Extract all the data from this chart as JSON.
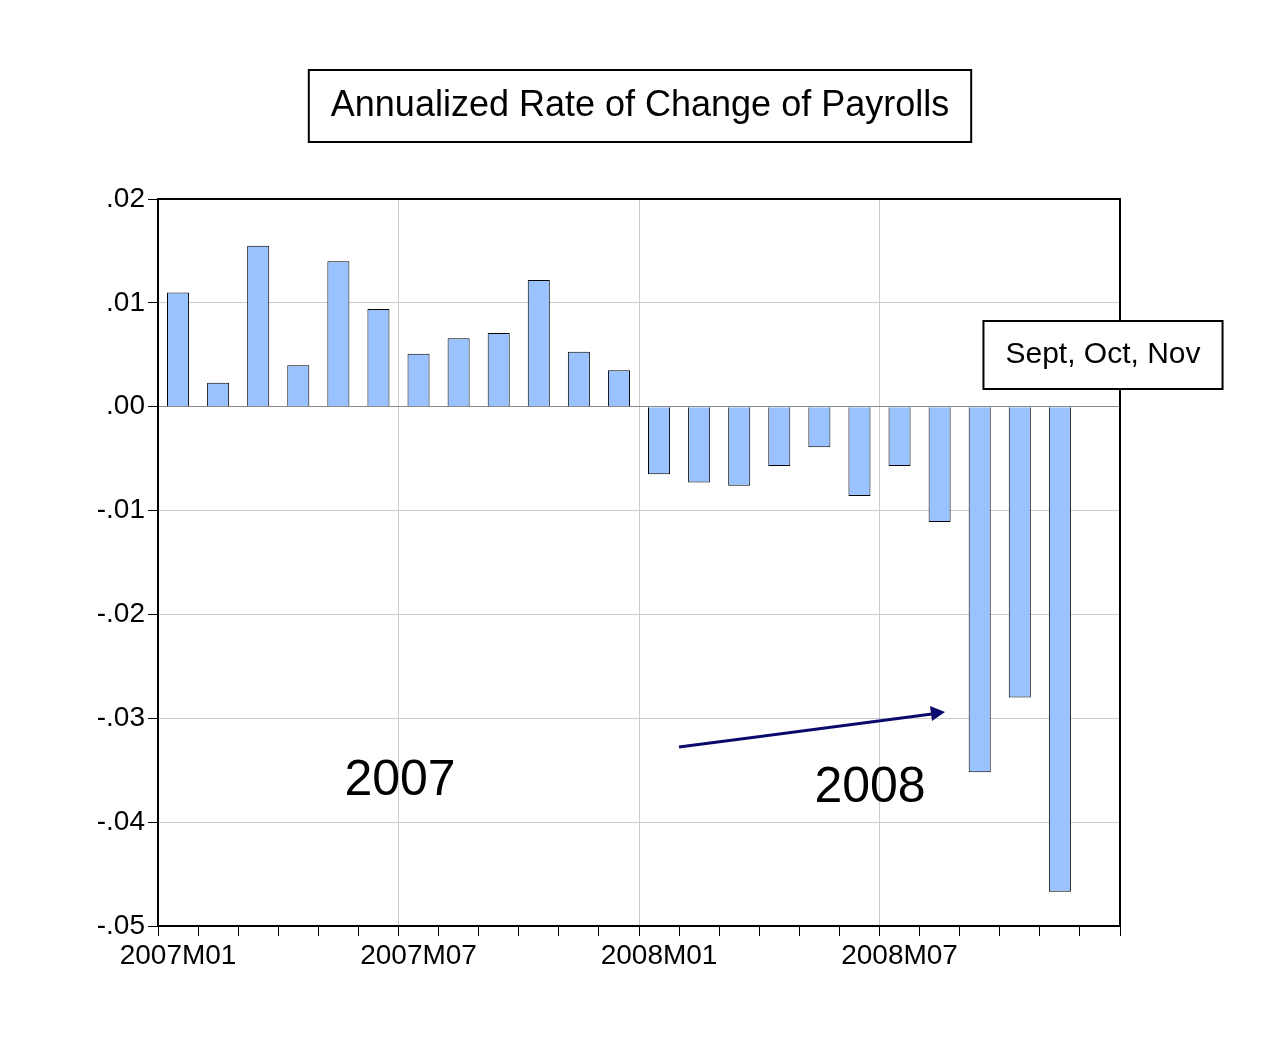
{
  "chart_data": {
    "type": "bar",
    "title": "Annualized Rate of Change of Payrolls",
    "categories": [
      "2007M01",
      null,
      null,
      null,
      null,
      null,
      "2007M07",
      null,
      null,
      null,
      null,
      null,
      "2008M01",
      null,
      null,
      null,
      null,
      null,
      "2008M07",
      null,
      null,
      null,
      null,
      null
    ],
    "values": [
      0.011,
      0.0023,
      0.0155,
      0.004,
      0.014,
      0.0094,
      0.0051,
      0.0066,
      0.0071,
      0.0122,
      0.0053,
      0.0035,
      -0.0065,
      -0.0073,
      -0.0076,
      -0.0057,
      -0.0039,
      -0.0086,
      -0.0057,
      -0.0111,
      -0.0352,
      -0.028,
      -0.0467,
      null
    ],
    "color": "#99c2ff",
    "ylim": [
      -0.05,
      0.02
    ],
    "yticks": [
      {
        "value": 0.02,
        "label": ".02"
      },
      {
        "value": 0.01,
        "label": ".01"
      },
      {
        "value": 0,
        "label": ".00"
      },
      {
        "value": -0.01,
        "label": "-.01"
      },
      {
        "value": -0.02,
        "label": "-.02"
      },
      {
        "value": -0.03,
        "label": "-.03"
      },
      {
        "value": -0.04,
        "label": "-.04"
      },
      {
        "value": -0.05,
        "label": "-.05"
      }
    ],
    "grid": true,
    "legend": false,
    "annotations": [
      "Sept, Oct, Nov",
      "2007",
      "2008"
    ]
  }
}
